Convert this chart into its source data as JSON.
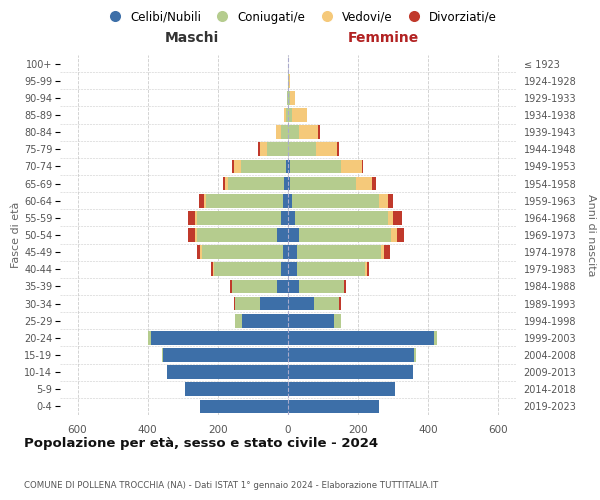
{
  "age_groups": [
    "0-4",
    "5-9",
    "10-14",
    "15-19",
    "20-24",
    "25-29",
    "30-34",
    "35-39",
    "40-44",
    "45-49",
    "50-54",
    "55-59",
    "60-64",
    "65-69",
    "70-74",
    "75-79",
    "80-84",
    "85-89",
    "90-94",
    "95-99",
    "100+"
  ],
  "birth_years": [
    "2019-2023",
    "2014-2018",
    "2009-2013",
    "2004-2008",
    "1999-2003",
    "1994-1998",
    "1989-1993",
    "1984-1988",
    "1979-1983",
    "1974-1978",
    "1969-1973",
    "1964-1968",
    "1959-1963",
    "1954-1958",
    "1949-1953",
    "1944-1948",
    "1939-1943",
    "1934-1938",
    "1929-1933",
    "1924-1928",
    "≤ 1923"
  ],
  "male": {
    "celibi": [
      250,
      295,
      345,
      355,
      390,
      130,
      80,
      30,
      20,
      15,
      30,
      20,
      15,
      10,
      5,
      0,
      0,
      0,
      0,
      0,
      0
    ],
    "coniugati": [
      0,
      0,
      0,
      5,
      10,
      20,
      70,
      130,
      190,
      230,
      230,
      240,
      220,
      160,
      130,
      60,
      20,
      5,
      2,
      0,
      0
    ],
    "vedovi": [
      0,
      0,
      0,
      0,
      0,
      0,
      0,
      0,
      5,
      5,
      5,
      5,
      5,
      10,
      20,
      20,
      15,
      5,
      0,
      0,
      0
    ],
    "divorziati": [
      0,
      0,
      0,
      0,
      0,
      0,
      5,
      5,
      5,
      10,
      20,
      20,
      15,
      5,
      5,
      5,
      0,
      0,
      0,
      0,
      0
    ]
  },
  "female": {
    "nubili": [
      260,
      305,
      355,
      360,
      415,
      130,
      75,
      30,
      25,
      25,
      30,
      20,
      10,
      5,
      5,
      0,
      0,
      0,
      0,
      0,
      0
    ],
    "coniugate": [
      0,
      0,
      0,
      5,
      10,
      20,
      70,
      130,
      195,
      240,
      265,
      265,
      250,
      190,
      145,
      80,
      30,
      10,
      5,
      2,
      0
    ],
    "vedove": [
      0,
      0,
      0,
      0,
      0,
      0,
      0,
      0,
      5,
      10,
      15,
      15,
      25,
      45,
      60,
      60,
      55,
      45,
      15,
      5,
      0
    ],
    "divorziate": [
      0,
      0,
      0,
      0,
      0,
      0,
      5,
      5,
      5,
      15,
      20,
      25,
      15,
      10,
      5,
      5,
      5,
      0,
      0,
      0,
      0
    ]
  },
  "colors": {
    "celibi": "#3d6fa8",
    "coniugati": "#b5cc8e",
    "vedovi": "#f5c97a",
    "divorziati": "#c0392b"
  },
  "title": "Popolazione per età, sesso e stato civile - 2024",
  "subtitle": "COMUNE DI POLLENA TROCCHIA (NA) - Dati ISTAT 1° gennaio 2024 - Elaborazione TUTTITALIA.IT",
  "xlabel_left": "Maschi",
  "xlabel_right": "Femmine",
  "ylabel_left": "Fasce di età",
  "ylabel_right": "Anni di nascita",
  "xlim": 650,
  "background_color": "#ffffff",
  "grid_color": "#cccccc",
  "legend_labels": [
    "Celibi/Nubili",
    "Coniugati/e",
    "Vedovi/e",
    "Divorziati/e"
  ]
}
